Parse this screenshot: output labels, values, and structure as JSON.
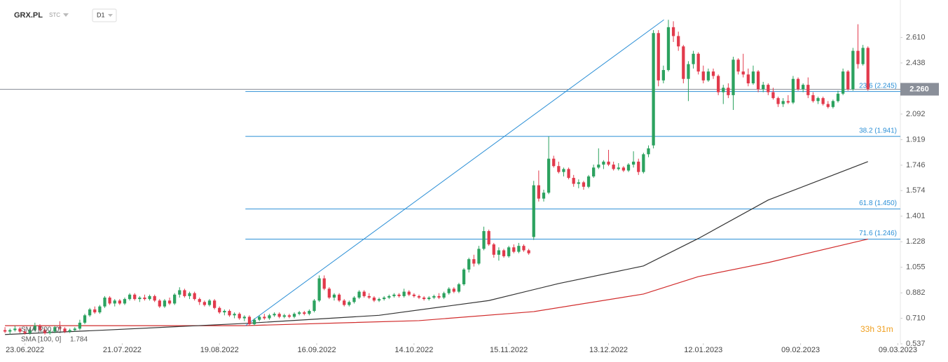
{
  "chart_data": {
    "type": "candlestick",
    "symbol": "GRX.PL",
    "market": "STC",
    "interval": "D1",
    "up_color": "#2ca25f",
    "down_color": "#e23a4c",
    "xlim": [
      -1,
      179.5
    ],
    "ylim": [
      0.542,
      2.864
    ],
    "xticks": [
      {
        "value": 4,
        "label": "23.06.2022"
      },
      {
        "value": 23.5,
        "label": "21.07.2022"
      },
      {
        "value": 43,
        "label": "19.08.2022"
      },
      {
        "value": 62.5,
        "label": "16.09.2022"
      },
      {
        "value": 82,
        "label": "14.10.2022"
      },
      {
        "value": 101,
        "label": "15.11.2022"
      },
      {
        "value": 121,
        "label": "13.12.2022"
      },
      {
        "value": 140,
        "label": "12.01.2023"
      },
      {
        "value": 159.5,
        "label": "09.02.2023"
      },
      {
        "value": 179,
        "label": "09.03.2023"
      }
    ],
    "yticks": [
      0.537,
      {
        "value": 0.71,
        "label": "0.710"
      },
      0.882,
      1.055,
      1.228,
      1.401,
      1.574,
      1.746,
      1.919,
      2.092,
      2.438,
      {
        "value": 2.61,
        "label": "2.610"
      }
    ],
    "last_price": {
      "value": 2.26,
      "label": "2.260",
      "color": "#8a8f99"
    },
    "fibonacci": {
      "color": "#2b8fd6",
      "start_x": 48.2,
      "levels": [
        {
          "value": 2.245,
          "label": "23.6 (2.245)"
        },
        {
          "value": 1.941,
          "label": "38.2 (1.941)"
        },
        {
          "value": 1.45,
          "label": "61.8 (1.450)"
        },
        {
          "value": 1.246,
          "label": "71.6 (1.246)"
        }
      ]
    },
    "trendline": {
      "color": "#2b8fd6",
      "x": [
        48.2,
        132.1
      ],
      "values": [
        0.66,
        2.73
      ]
    },
    "timer": "33h 31m",
    "series": [
      {
        "name": "SMA [200, 0]",
        "color": "#d12b2b",
        "x": [
          0,
          48,
          83,
          106,
          128,
          139,
          153,
          173
        ],
        "values": [
          0.66,
          0.66,
          0.694,
          0.755,
          0.874,
          0.992,
          1.087,
          1.246
        ]
      },
      {
        "name": "SMA [100, 0]",
        "color": "#333333",
        "value_label": "1.784",
        "x": [
          0,
          20,
          48,
          75,
          97,
          111,
          128,
          139,
          153,
          173
        ],
        "values": [
          0.6,
          0.63,
          0.675,
          0.73,
          0.83,
          0.945,
          1.064,
          1.25,
          1.51,
          1.77
        ]
      }
    ],
    "ohlc": [
      [
        0.63,
        0.65,
        0.61,
        0.62
      ],
      [
        0.62,
        0.64,
        0.6,
        0.63
      ],
      [
        0.63,
        0.66,
        0.62,
        0.64
      ],
      [
        0.64,
        0.65,
        0.61,
        0.62
      ],
      [
        0.62,
        0.64,
        0.6,
        0.61
      ],
      [
        0.61,
        0.64,
        0.6,
        0.63
      ],
      [
        0.63,
        0.68,
        0.62,
        0.66
      ],
      [
        0.66,
        0.67,
        0.62,
        0.63
      ],
      [
        0.63,
        0.64,
        0.6,
        0.61
      ],
      [
        0.61,
        0.63,
        0.6,
        0.62
      ],
      [
        0.62,
        0.66,
        0.61,
        0.65
      ],
      [
        0.65,
        0.69,
        0.63,
        0.64
      ],
      [
        0.64,
        0.65,
        0.61,
        0.62
      ],
      [
        0.62,
        0.64,
        0.61,
        0.63
      ],
      [
        0.63,
        0.65,
        0.62,
        0.64
      ],
      [
        0.64,
        0.7,
        0.63,
        0.68
      ],
      [
        0.68,
        0.74,
        0.67,
        0.73
      ],
      [
        0.73,
        0.78,
        0.72,
        0.77
      ],
      [
        0.77,
        0.79,
        0.74,
        0.75
      ],
      [
        0.75,
        0.8,
        0.74,
        0.79
      ],
      [
        0.79,
        0.86,
        0.78,
        0.85
      ],
      [
        0.85,
        0.86,
        0.8,
        0.81
      ],
      [
        0.81,
        0.84,
        0.79,
        0.83
      ],
      [
        0.83,
        0.84,
        0.8,
        0.81
      ],
      [
        0.81,
        0.85,
        0.8,
        0.84
      ],
      [
        0.84,
        0.88,
        0.83,
        0.87
      ],
      [
        0.87,
        0.88,
        0.83,
        0.84
      ],
      [
        0.84,
        0.86,
        0.82,
        0.85
      ],
      [
        0.85,
        0.87,
        0.83,
        0.84
      ],
      [
        0.84,
        0.87,
        0.83,
        0.86
      ],
      [
        0.86,
        0.87,
        0.82,
        0.83
      ],
      [
        0.83,
        0.84,
        0.78,
        0.79
      ],
      [
        0.79,
        0.84,
        0.78,
        0.83
      ],
      [
        0.83,
        0.85,
        0.8,
        0.81
      ],
      [
        0.81,
        0.88,
        0.8,
        0.87
      ],
      [
        0.87,
        0.92,
        0.85,
        0.9
      ],
      [
        0.9,
        0.91,
        0.85,
        0.86
      ],
      [
        0.86,
        0.89,
        0.84,
        0.88
      ],
      [
        0.88,
        0.89,
        0.83,
        0.84
      ],
      [
        0.84,
        0.85,
        0.8,
        0.82
      ],
      [
        0.82,
        0.83,
        0.79,
        0.8
      ],
      [
        0.8,
        0.84,
        0.79,
        0.83
      ],
      [
        0.83,
        0.84,
        0.77,
        0.78
      ],
      [
        0.78,
        0.79,
        0.74,
        0.75
      ],
      [
        0.75,
        0.77,
        0.73,
        0.76
      ],
      [
        0.76,
        0.77,
        0.72,
        0.73
      ],
      [
        0.73,
        0.75,
        0.71,
        0.74
      ],
      [
        0.74,
        0.75,
        0.7,
        0.71
      ],
      [
        0.71,
        0.73,
        0.69,
        0.72
      ],
      [
        0.72,
        0.73,
        0.66,
        0.67
      ],
      [
        0.67,
        0.71,
        0.66,
        0.7
      ],
      [
        0.7,
        0.73,
        0.69,
        0.72
      ],
      [
        0.72,
        0.74,
        0.7,
        0.71
      ],
      [
        0.71,
        0.74,
        0.7,
        0.73
      ],
      [
        0.73,
        0.75,
        0.72,
        0.74
      ],
      [
        0.74,
        0.75,
        0.71,
        0.72
      ],
      [
        0.72,
        0.74,
        0.71,
        0.73
      ],
      [
        0.73,
        0.74,
        0.71,
        0.72
      ],
      [
        0.72,
        0.75,
        0.71,
        0.74
      ],
      [
        0.74,
        0.76,
        0.73,
        0.75
      ],
      [
        0.75,
        0.76,
        0.73,
        0.74
      ],
      [
        0.74,
        0.77,
        0.73,
        0.76
      ],
      [
        0.76,
        0.84,
        0.75,
        0.83
      ],
      [
        0.83,
        1.0,
        0.82,
        0.98
      ],
      [
        0.98,
        1.0,
        0.9,
        0.91
      ],
      [
        0.91,
        0.92,
        0.84,
        0.85
      ],
      [
        0.85,
        0.88,
        0.83,
        0.87
      ],
      [
        0.87,
        0.88,
        0.82,
        0.83
      ],
      [
        0.83,
        0.84,
        0.79,
        0.8
      ],
      [
        0.8,
        0.83,
        0.79,
        0.82
      ],
      [
        0.82,
        0.86,
        0.81,
        0.85
      ],
      [
        0.85,
        0.9,
        0.84,
        0.89
      ],
      [
        0.89,
        0.9,
        0.85,
        0.86
      ],
      [
        0.86,
        0.88,
        0.84,
        0.85
      ],
      [
        0.85,
        0.86,
        0.82,
        0.83
      ],
      [
        0.83,
        0.85,
        0.82,
        0.84
      ],
      [
        0.84,
        0.86,
        0.83,
        0.85
      ],
      [
        0.85,
        0.87,
        0.84,
        0.86
      ],
      [
        0.86,
        0.88,
        0.85,
        0.87
      ],
      [
        0.87,
        0.88,
        0.85,
        0.86
      ],
      [
        0.86,
        0.91,
        0.85,
        0.89
      ],
      [
        0.89,
        0.9,
        0.86,
        0.87
      ],
      [
        0.87,
        0.88,
        0.85,
        0.86
      ],
      [
        0.86,
        0.87,
        0.84,
        0.85
      ],
      [
        0.85,
        0.86,
        0.83,
        0.84
      ],
      [
        0.84,
        0.86,
        0.83,
        0.85
      ],
      [
        0.85,
        0.87,
        0.84,
        0.86
      ],
      [
        0.86,
        0.88,
        0.84,
        0.85
      ],
      [
        0.85,
        0.89,
        0.84,
        0.88
      ],
      [
        0.88,
        0.92,
        0.87,
        0.91
      ],
      [
        0.91,
        0.92,
        0.88,
        0.89
      ],
      [
        0.89,
        0.95,
        0.88,
        0.94
      ],
      [
        0.94,
        1.05,
        0.93,
        1.04
      ],
      [
        1.04,
        1.12,
        1.02,
        1.11
      ],
      [
        1.11,
        1.14,
        1.06,
        1.08
      ],
      [
        1.08,
        1.2,
        1.07,
        1.18
      ],
      [
        1.18,
        1.33,
        1.17,
        1.3
      ],
      [
        1.3,
        1.31,
        1.2,
        1.21
      ],
      [
        1.21,
        1.22,
        1.12,
        1.14
      ],
      [
        1.14,
        1.19,
        1.1,
        1.17
      ],
      [
        1.17,
        1.18,
        1.12,
        1.13
      ],
      [
        1.13,
        1.2,
        1.12,
        1.19
      ],
      [
        1.19,
        1.21,
        1.15,
        1.16
      ],
      [
        1.16,
        1.22,
        1.15,
        1.2
      ],
      [
        1.2,
        1.21,
        1.16,
        1.17
      ],
      [
        1.17,
        1.18,
        1.14,
        1.15
      ],
      [
        1.26,
        1.64,
        1.24,
        1.61
      ],
      [
        1.61,
        1.71,
        1.5,
        1.52
      ],
      [
        1.52,
        1.58,
        1.5,
        1.56
      ],
      [
        1.56,
        1.94,
        1.55,
        1.79
      ],
      [
        1.79,
        1.81,
        1.73,
        1.74
      ],
      [
        1.74,
        1.77,
        1.69,
        1.7
      ],
      [
        1.7,
        1.73,
        1.67,
        1.72
      ],
      [
        1.72,
        1.73,
        1.65,
        1.66
      ],
      [
        1.66,
        1.68,
        1.6,
        1.62
      ],
      [
        1.62,
        1.65,
        1.59,
        1.63
      ],
      [
        1.63,
        1.64,
        1.58,
        1.6
      ],
      [
        1.6,
        1.68,
        1.59,
        1.67
      ],
      [
        1.67,
        1.75,
        1.66,
        1.73
      ],
      [
        1.73,
        1.86,
        1.72,
        1.75
      ],
      [
        1.75,
        1.78,
        1.72,
        1.77
      ],
      [
        1.77,
        1.85,
        1.74,
        1.75
      ],
      [
        1.75,
        1.77,
        1.71,
        1.72
      ],
      [
        1.72,
        1.76,
        1.71,
        1.73
      ],
      [
        1.73,
        1.74,
        1.7,
        1.71
      ],
      [
        1.71,
        1.76,
        1.7,
        1.75
      ],
      [
        1.75,
        1.84,
        1.73,
        1.77
      ],
      [
        1.77,
        1.79,
        1.68,
        1.7
      ],
      [
        1.7,
        1.83,
        1.69,
        1.82
      ],
      [
        1.82,
        1.88,
        1.8,
        1.86
      ],
      [
        1.88,
        2.66,
        1.86,
        2.64
      ],
      [
        2.64,
        2.66,
        2.28,
        2.32
      ],
      [
        2.32,
        2.42,
        2.3,
        2.39
      ],
      [
        2.39,
        2.73,
        2.38,
        2.68
      ],
      [
        2.68,
        2.72,
        2.58,
        2.62
      ],
      [
        2.62,
        2.65,
        2.52,
        2.55
      ],
      [
        2.55,
        2.56,
        2.3,
        2.33
      ],
      [
        2.33,
        2.45,
        2.18,
        2.43
      ],
      [
        2.43,
        2.52,
        2.4,
        2.5
      ],
      [
        2.5,
        2.51,
        2.36,
        2.38
      ],
      [
        2.38,
        2.42,
        2.3,
        2.32
      ],
      [
        2.32,
        2.4,
        2.31,
        2.38
      ],
      [
        2.38,
        2.4,
        2.33,
        2.35
      ],
      [
        2.35,
        2.36,
        2.22,
        2.24
      ],
      [
        2.24,
        2.29,
        2.16,
        2.27
      ],
      [
        2.27,
        2.3,
        2.2,
        2.22
      ],
      [
        2.22,
        2.48,
        2.12,
        2.46
      ],
      [
        2.46,
        2.47,
        2.36,
        2.38
      ],
      [
        2.38,
        2.5,
        2.34,
        2.36
      ],
      [
        2.36,
        2.4,
        2.28,
        2.3
      ],
      [
        2.3,
        2.42,
        2.29,
        2.38
      ],
      [
        2.38,
        2.39,
        2.24,
        2.26
      ],
      [
        2.26,
        2.31,
        2.24,
        2.29
      ],
      [
        2.29,
        2.3,
        2.22,
        2.24
      ],
      [
        2.24,
        2.27,
        2.19,
        2.2
      ],
      [
        2.2,
        2.21,
        2.14,
        2.16
      ],
      [
        2.16,
        2.2,
        2.14,
        2.18
      ],
      [
        2.18,
        2.22,
        2.16,
        2.17
      ],
      [
        2.17,
        2.35,
        2.16,
        2.33
      ],
      [
        2.33,
        2.34,
        2.25,
        2.26
      ],
      [
        2.26,
        2.3,
        2.24,
        2.29
      ],
      [
        2.29,
        2.34,
        2.2,
        2.22
      ],
      [
        2.22,
        2.24,
        2.17,
        2.18
      ],
      [
        2.18,
        2.21,
        2.16,
        2.2
      ],
      [
        2.2,
        2.21,
        2.15,
        2.16
      ],
      [
        2.16,
        2.18,
        2.13,
        2.14
      ],
      [
        2.14,
        2.19,
        2.13,
        2.18
      ],
      [
        2.18,
        2.25,
        2.17,
        2.23
      ],
      [
        2.23,
        2.4,
        2.22,
        2.38
      ],
      [
        2.38,
        2.39,
        2.25,
        2.26
      ],
      [
        2.26,
        2.54,
        2.25,
        2.52
      ],
      [
        2.52,
        2.7,
        2.4,
        2.43
      ],
      [
        2.43,
        2.56,
        2.42,
        2.54
      ],
      [
        2.54,
        2.55,
        2.25,
        2.26
      ]
    ]
  }
}
